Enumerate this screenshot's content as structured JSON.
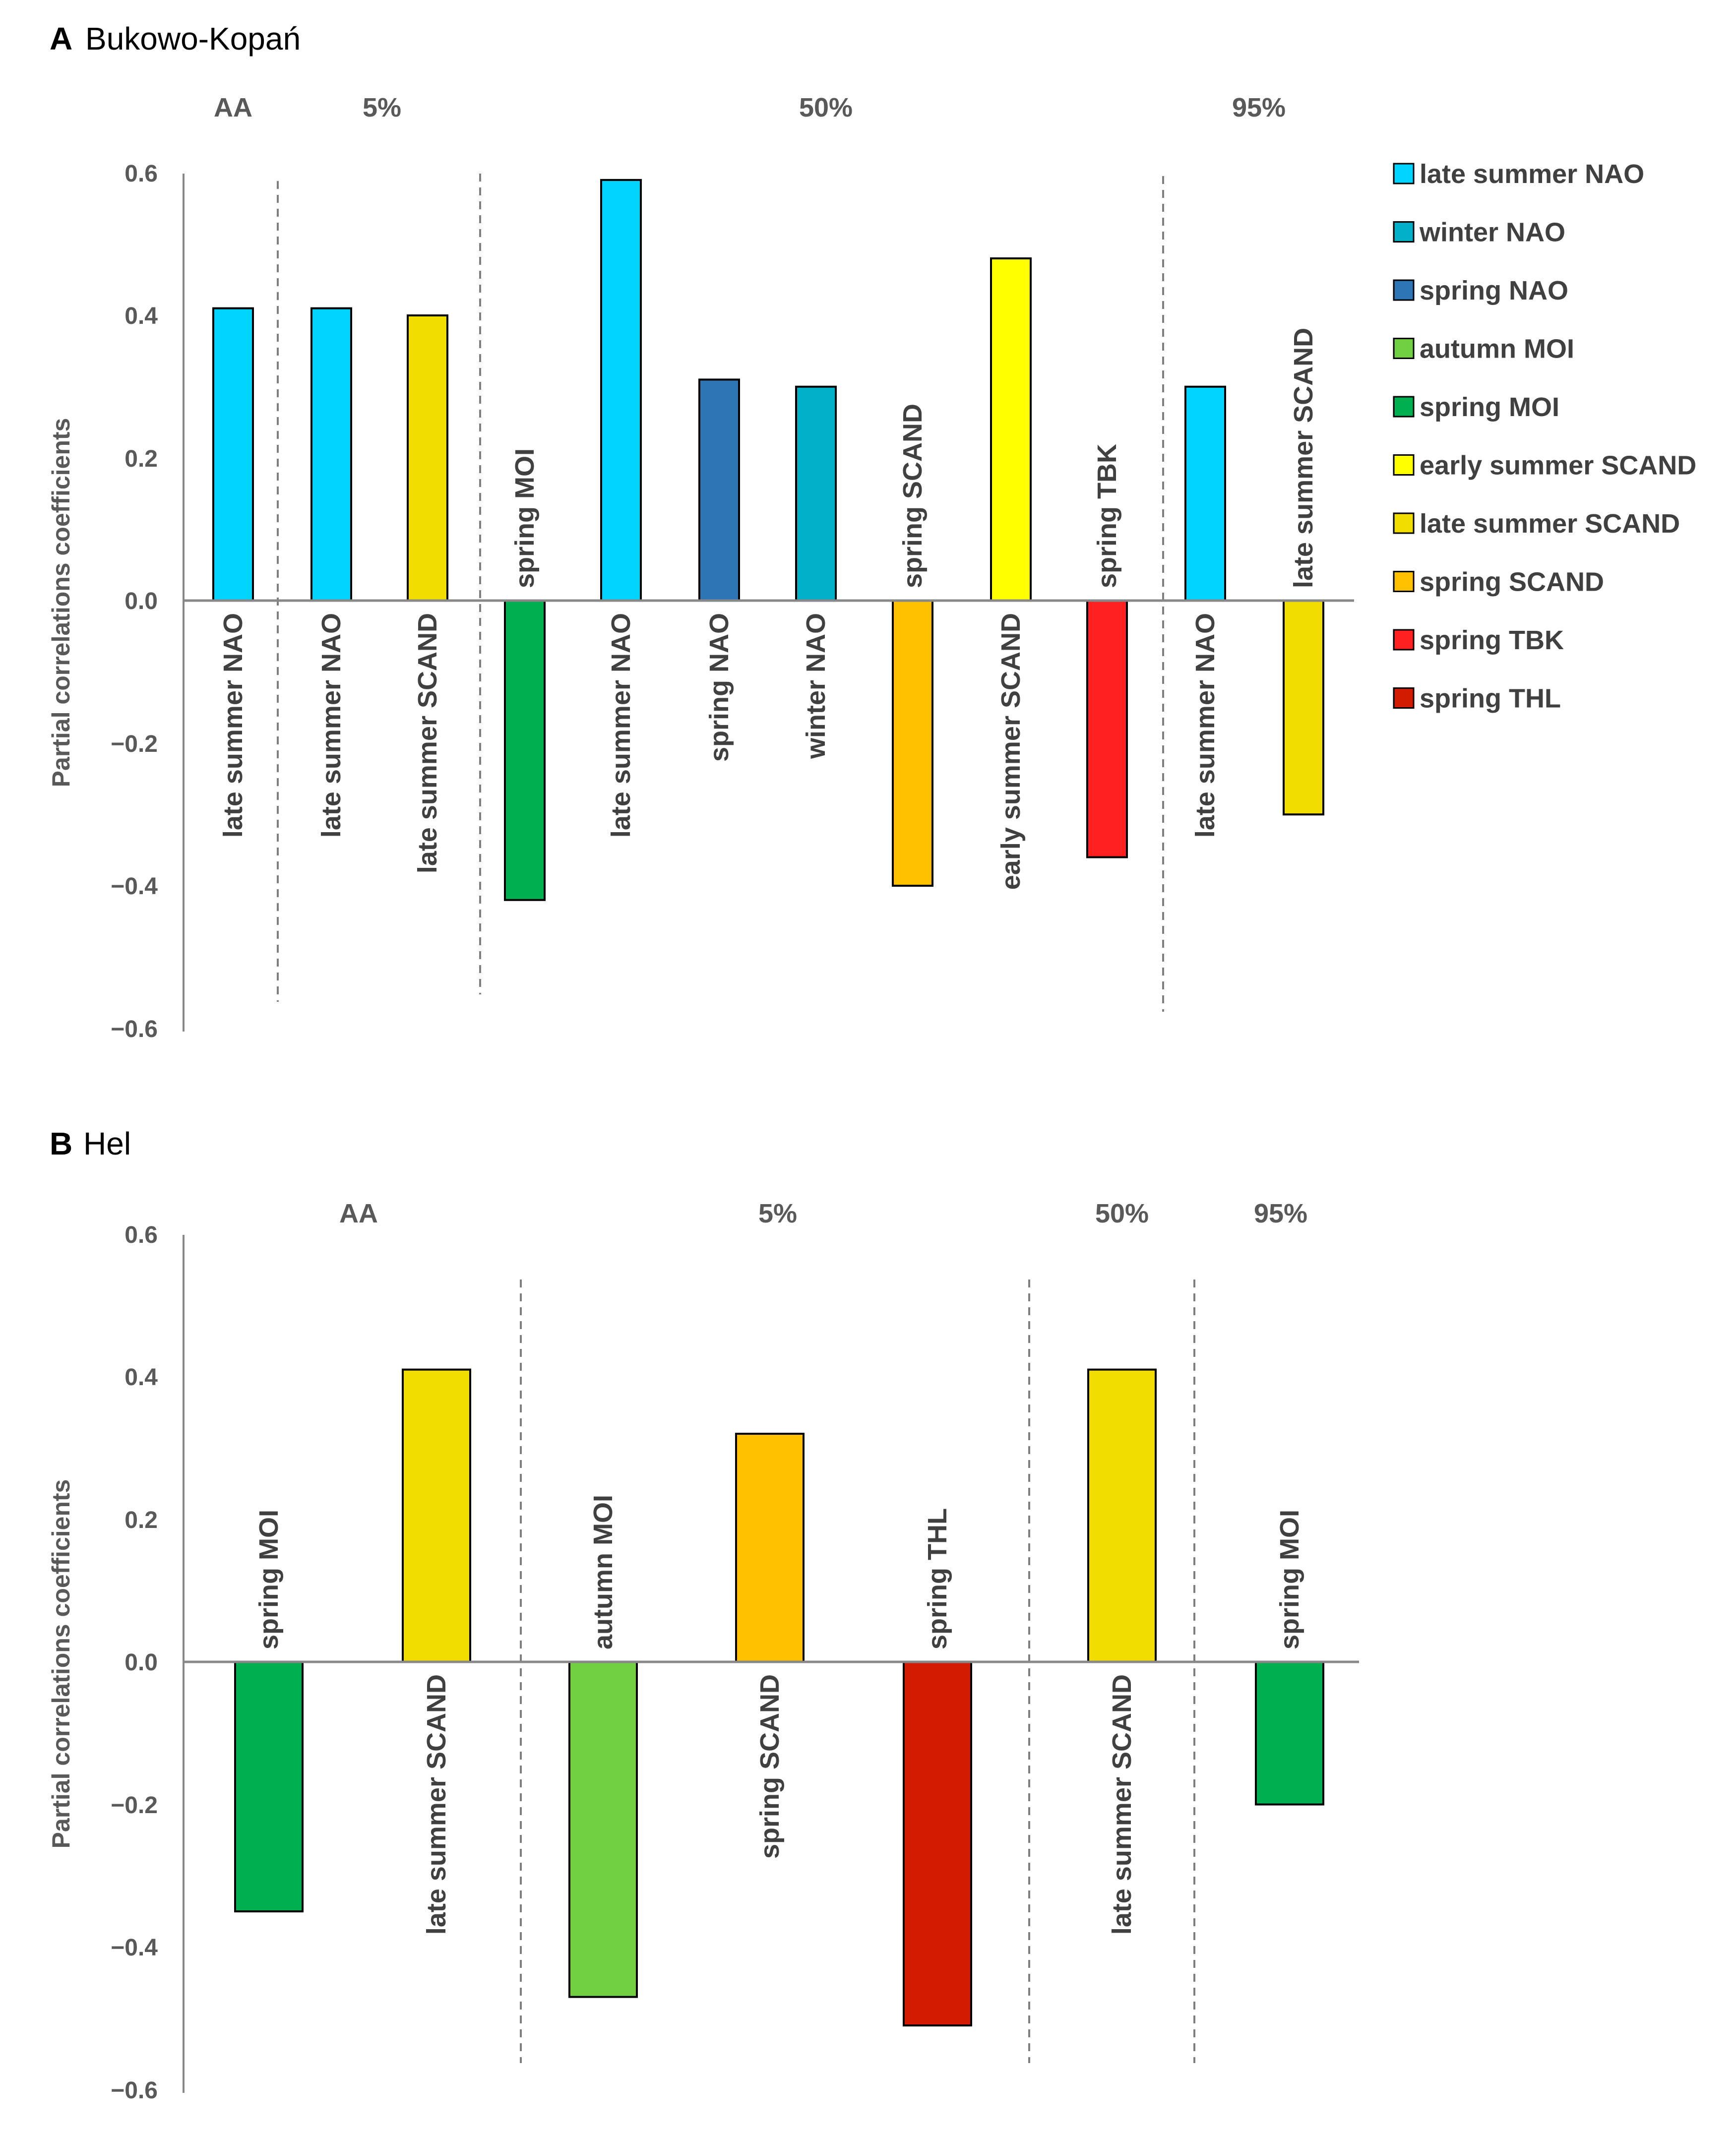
{
  "chart_data": [
    {
      "type": "bar",
      "panel_letter": "A",
      "title": "Bukowo-Kopań",
      "ylabel": "Partial correlations coefficients",
      "ylim": [
        -0.6,
        0.6
      ],
      "yticks": [
        "0.6",
        "0.4",
        "0.2",
        "0.0",
        "−0.2",
        "−0.4",
        "−0.6"
      ],
      "ytick_values": [
        0.6,
        0.4,
        0.2,
        0.0,
        -0.2,
        -0.4,
        -0.6
      ],
      "groups": [
        "AA",
        "5%",
        "50%",
        "95%"
      ],
      "bars": [
        {
          "group": "AA",
          "label": "late summer NAO",
          "value": 0.41,
          "color": "#00D4FF"
        },
        {
          "group": "5%",
          "label": "late summer NAO",
          "value": 0.41,
          "color": "#00D4FF"
        },
        {
          "group": "5%",
          "label": "late summer SCAND",
          "value": 0.4,
          "color": "#F0DC00"
        },
        {
          "group": "50%",
          "label": "spring MOI",
          "value": -0.42,
          "color": "#00B050"
        },
        {
          "group": "50%",
          "label": "late summer NAO",
          "value": 0.59,
          "color": "#00D4FF"
        },
        {
          "group": "50%",
          "label": "spring NAO",
          "value": 0.31,
          "color": "#2E75B6"
        },
        {
          "group": "50%",
          "label": "winter NAO",
          "value": 0.3,
          "color": "#00B0C8"
        },
        {
          "group": "50%",
          "label": "spring SCAND",
          "value": -0.4,
          "color": "#FFC000"
        },
        {
          "group": "50%",
          "label": "early summer SCAND",
          "value": 0.48,
          "color": "#FFFF00"
        },
        {
          "group": "50%",
          "label": "spring TBK",
          "value": -0.36,
          "color": "#FF2020"
        },
        {
          "group": "95%",
          "label": "late summer NAO",
          "value": 0.3,
          "color": "#00D4FF"
        },
        {
          "group": "95%",
          "label": "late summer SCAND",
          "value": -0.3,
          "color": "#F0DC00"
        }
      ],
      "legend": [
        {
          "label": "late summer NAO",
          "color": "#00D4FF"
        },
        {
          "label": "winter NAO",
          "color": "#00B0C8"
        },
        {
          "label": "spring NAO",
          "color": "#2E75B6"
        },
        {
          "label": "autumn MOI",
          "color": "#70D040"
        },
        {
          "label": "spring MOI",
          "color": "#00B050"
        },
        {
          "label": "early summer SCAND",
          "color": "#FFFF00"
        },
        {
          "label": "late summer SCAND",
          "color": "#F0DC00"
        },
        {
          "label": "spring SCAND",
          "color": "#FFC000"
        },
        {
          "label": "spring TBK",
          "color": "#FF2020"
        },
        {
          "label": "spring THL",
          "color": "#D41A00"
        }
      ],
      "legend_position": "right"
    },
    {
      "type": "bar",
      "panel_letter": "B",
      "title": "Hel",
      "ylabel": "Partial correlations coefficients",
      "ylim": [
        -0.6,
        0.6
      ],
      "yticks": [
        "0.6",
        "0.4",
        "0.2",
        "0.0",
        "−0.2",
        "−0.4",
        "−0.6"
      ],
      "ytick_values": [
        0.6,
        0.4,
        0.2,
        0.0,
        -0.2,
        -0.4,
        -0.6
      ],
      "groups": [
        "AA",
        "5%",
        "50%",
        "95%"
      ],
      "bars": [
        {
          "group": "AA",
          "label": "spring MOI",
          "value": -0.35,
          "color": "#00B050"
        },
        {
          "group": "AA",
          "label": "late summer SCAND",
          "value": 0.41,
          "color": "#F0DC00"
        },
        {
          "group": "5%",
          "label": "autumn MOI",
          "value": -0.47,
          "color": "#70D040"
        },
        {
          "group": "5%",
          "label": "spring SCAND",
          "value": 0.32,
          "color": "#FFC000"
        },
        {
          "group": "5%",
          "label": "spring THL",
          "value": -0.51,
          "color": "#D41A00"
        },
        {
          "group": "50%",
          "label": "late summer SCAND",
          "value": 0.41,
          "color": "#F0DC00"
        },
        {
          "group": "95%",
          "label": "spring MOI",
          "value": -0.2,
          "color": "#00B050"
        }
      ]
    }
  ]
}
